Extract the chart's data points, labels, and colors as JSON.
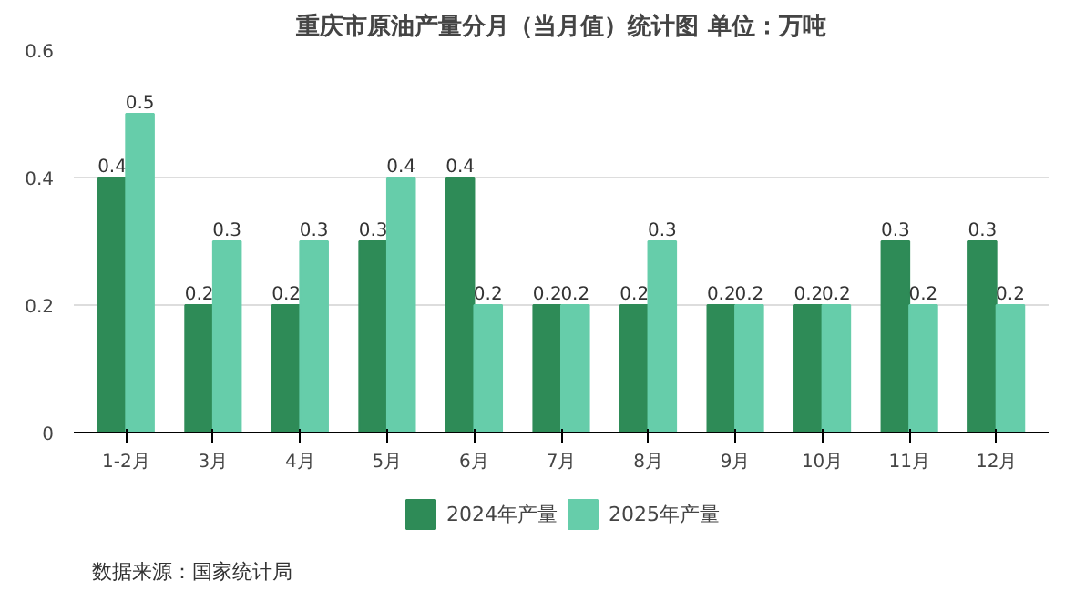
{
  "chart_data": {
    "type": "bar",
    "title": "重庆市原油产量分月（当月值）统计图 单位：万吨",
    "categories": [
      "1-2月",
      "3月",
      "4月",
      "5月",
      "6月",
      "7月",
      "8月",
      "9月",
      "10月",
      "11月",
      "12月"
    ],
    "series": [
      {
        "name": "2024年产量",
        "color": "#2e8b57",
        "values": [
          0.4,
          0.2,
          0.2,
          0.3,
          0.4,
          0.2,
          0.2,
          0.2,
          0.2,
          0.3,
          0.3
        ]
      },
      {
        "name": "2025年产量",
        "color": "#66cdaa",
        "values": [
          0.5,
          0.3,
          0.3,
          0.4,
          0.2,
          0.2,
          0.3,
          0.2,
          0.2,
          0.2,
          0.2
        ]
      }
    ],
    "ylim": [
      0,
      0.6
    ],
    "yticks": [
      {
        "value": 0,
        "label": "0"
      },
      0.2,
      0.4,
      0.6
    ],
    "grid": "y",
    "legend": "bottom",
    "data_labels": true,
    "annotations": [
      "数据来源：国家统计局"
    ]
  }
}
